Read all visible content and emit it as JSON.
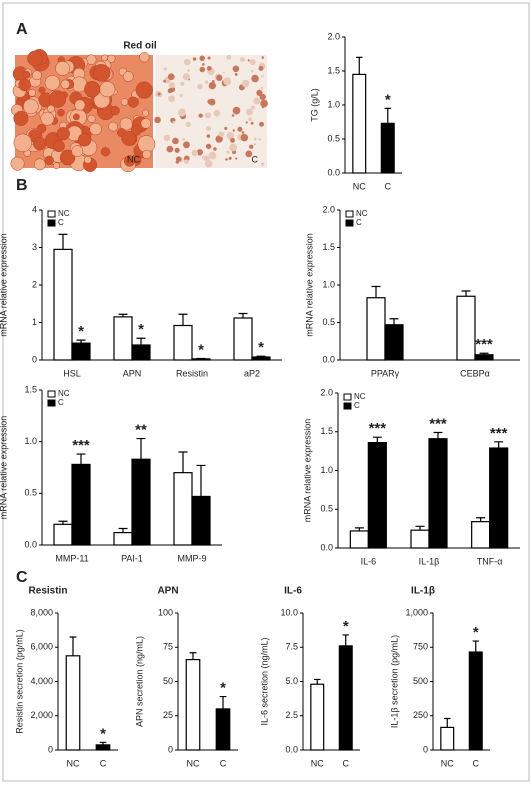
{
  "panel_labels": [
    "A",
    "B",
    "C"
  ],
  "image": {
    "title": "Red oil",
    "labels": [
      "NC",
      "C"
    ]
  },
  "chart_data": [
    {
      "type": "bar",
      "ylabel": "TG (g/L)",
      "categories": [
        "NC",
        "C"
      ],
      "series": [
        {
          "name": "NC",
          "color": "#ffffff",
          "values": [
            1.45,
            null
          ],
          "errors": [
            0.25,
            null
          ]
        },
        {
          "name": "C",
          "color": "#000000",
          "values": [
            null,
            0.73
          ],
          "errors": [
            null,
            0.22
          ]
        }
      ],
      "annotations": [
        null,
        "*"
      ],
      "ylim": [
        0,
        2
      ],
      "yticks": [
        {
          "value": 0,
          "label": "0.0"
        },
        0.5,
        {
          "value": 1,
          "label": "1.0"
        },
        1.5,
        {
          "value": 2,
          "label": "2.0"
        }
      ]
    },
    {
      "type": "bar",
      "ylabel": "mRNA relative expression",
      "categories": [
        "HSL",
        "APN",
        "Resistin",
        "aP2"
      ],
      "series": [
        {
          "name": "NC",
          "color": "#ffffff",
          "values": [
            2.95,
            1.15,
            0.92,
            1.12
          ],
          "errors": [
            0.4,
            0.07,
            0.3,
            0.12
          ]
        },
        {
          "name": "C",
          "color": "#000000",
          "values": [
            0.45,
            0.4,
            0.03,
            0.08
          ],
          "errors": [
            0.08,
            0.18,
            0.01,
            0.02
          ]
        }
      ],
      "annotations": [
        "*",
        "*",
        "*",
        "*"
      ],
      "legend": "upper left",
      "ylim": [
        0,
        4
      ],
      "yticks": [
        0,
        1,
        2,
        3,
        4
      ]
    },
    {
      "type": "bar",
      "ylabel": "mRNA relative expression",
      "categories": [
        "PPARγ",
        "CEBPα"
      ],
      "series": [
        {
          "name": "NC",
          "color": "#ffffff",
          "values": [
            0.83,
            0.85
          ],
          "errors": [
            0.15,
            0.07
          ]
        },
        {
          "name": "C",
          "color": "#000000",
          "values": [
            0.47,
            0.07
          ],
          "errors": [
            0.08,
            0.02
          ]
        }
      ],
      "annotations": [
        null,
        "***"
      ],
      "legend": "upper left",
      "ylim": [
        0,
        2
      ],
      "yticks": [
        {
          "value": 0,
          "label": "0.0"
        },
        0.5,
        {
          "value": 1,
          "label": "1.0"
        },
        1.5,
        {
          "value": 2,
          "label": "2.0"
        }
      ]
    },
    {
      "type": "bar",
      "ylabel": "mRNA relative expression",
      "categories": [
        "MMP-11",
        "PAI-1",
        "MMP-9"
      ],
      "series": [
        {
          "name": "NC",
          "color": "#ffffff",
          "values": [
            0.2,
            0.12,
            0.7
          ],
          "errors": [
            0.03,
            0.04,
            0.2
          ]
        },
        {
          "name": "C",
          "color": "#000000",
          "values": [
            0.78,
            0.83,
            0.47
          ],
          "errors": [
            0.1,
            0.2,
            0.3
          ]
        }
      ],
      "annotations": [
        "***",
        "**",
        null
      ],
      "legend": "upper left",
      "ylim": [
        0,
        1.5
      ],
      "yticks": [
        {
          "value": 0,
          "label": "0.0"
        },
        0.5,
        {
          "value": 1,
          "label": "1.0"
        },
        1.5
      ]
    },
    {
      "type": "bar",
      "ylabel": "mRNA relative expression",
      "categories": [
        "IL-6",
        "IL-1β",
        "TNF-α"
      ],
      "series": [
        {
          "name": "NC",
          "color": "#ffffff",
          "values": [
            0.22,
            0.23,
            0.34
          ],
          "errors": [
            0.04,
            0.05,
            0.05
          ]
        },
        {
          "name": "C",
          "color": "#000000",
          "values": [
            1.36,
            1.41,
            1.29
          ],
          "errors": [
            0.07,
            0.08,
            0.08
          ]
        }
      ],
      "annotations": [
        "***",
        "***",
        "***"
      ],
      "legend": "upper left",
      "ylim": [
        0,
        2
      ],
      "yticks": [
        {
          "value": 0,
          "label": "0.0"
        },
        0.5,
        {
          "value": 1,
          "label": "1.0"
        },
        1.5,
        {
          "value": 2,
          "label": "2.0"
        }
      ]
    },
    {
      "type": "bar",
      "title": "Resistin",
      "ylabel": "Resistin secretion (pg/mL)",
      "categories": [
        "NC",
        "C"
      ],
      "series": [
        {
          "name": "NC",
          "color": "#ffffff",
          "values": [
            5500,
            null
          ],
          "errors": [
            1100,
            null
          ]
        },
        {
          "name": "C",
          "color": "#000000",
          "values": [
            null,
            300
          ],
          "errors": [
            null,
            150
          ]
        }
      ],
      "annotations": [
        null,
        "*"
      ],
      "ylim": [
        0,
        8000
      ],
      "yticks": [
        0,
        {
          "value": 2000,
          "label": "2,000"
        },
        {
          "value": 4000,
          "label": "4,000"
        },
        {
          "value": 6000,
          "label": "6,000"
        },
        {
          "value": 8000,
          "label": "8,000"
        }
      ]
    },
    {
      "type": "bar",
      "title": "APN",
      "ylabel": "APN secretion (ng/mL)",
      "categories": [
        "NC",
        "C"
      ],
      "series": [
        {
          "name": "NC",
          "color": "#ffffff",
          "values": [
            66,
            null
          ],
          "errors": [
            5,
            null
          ]
        },
        {
          "name": "C",
          "color": "#000000",
          "values": [
            null,
            30
          ],
          "errors": [
            null,
            9
          ]
        }
      ],
      "annotations": [
        null,
        "*"
      ],
      "ylim": [
        0,
        100
      ],
      "yticks": [
        0,
        25,
        50,
        75,
        100
      ]
    },
    {
      "type": "bar",
      "title": "IL-6",
      "ylabel": "IL-6 secretion (ng/mL)",
      "categories": [
        "NC",
        "C"
      ],
      "series": [
        {
          "name": "NC",
          "color": "#ffffff",
          "values": [
            4.8,
            null
          ],
          "errors": [
            0.35,
            null
          ]
        },
        {
          "name": "C",
          "color": "#000000",
          "values": [
            null,
            7.6
          ],
          "errors": [
            null,
            0.8
          ]
        }
      ],
      "annotations": [
        null,
        "*"
      ],
      "ylim": [
        0,
        10
      ],
      "yticks": [
        {
          "value": 0,
          "label": "0.0"
        },
        2.5,
        {
          "value": 5,
          "label": "5.0"
        },
        7.5,
        {
          "value": 10,
          "label": "10.0"
        }
      ]
    },
    {
      "type": "bar",
      "title": "IL-1β",
      "ylabel": "IL-1β secretion (pg/mL)",
      "categories": [
        "NC",
        "C"
      ],
      "series": [
        {
          "name": "NC",
          "color": "#ffffff",
          "values": [
            165,
            null
          ],
          "errors": [
            65,
            null
          ]
        },
        {
          "name": "C",
          "color": "#000000",
          "values": [
            null,
            715
          ],
          "errors": [
            null,
            80
          ]
        }
      ],
      "annotations": [
        null,
        "*"
      ],
      "ylim": [
        0,
        1000
      ],
      "yticks": [
        0,
        250,
        500,
        750,
        {
          "value": 1000,
          "label": "1,000"
        }
      ]
    }
  ]
}
